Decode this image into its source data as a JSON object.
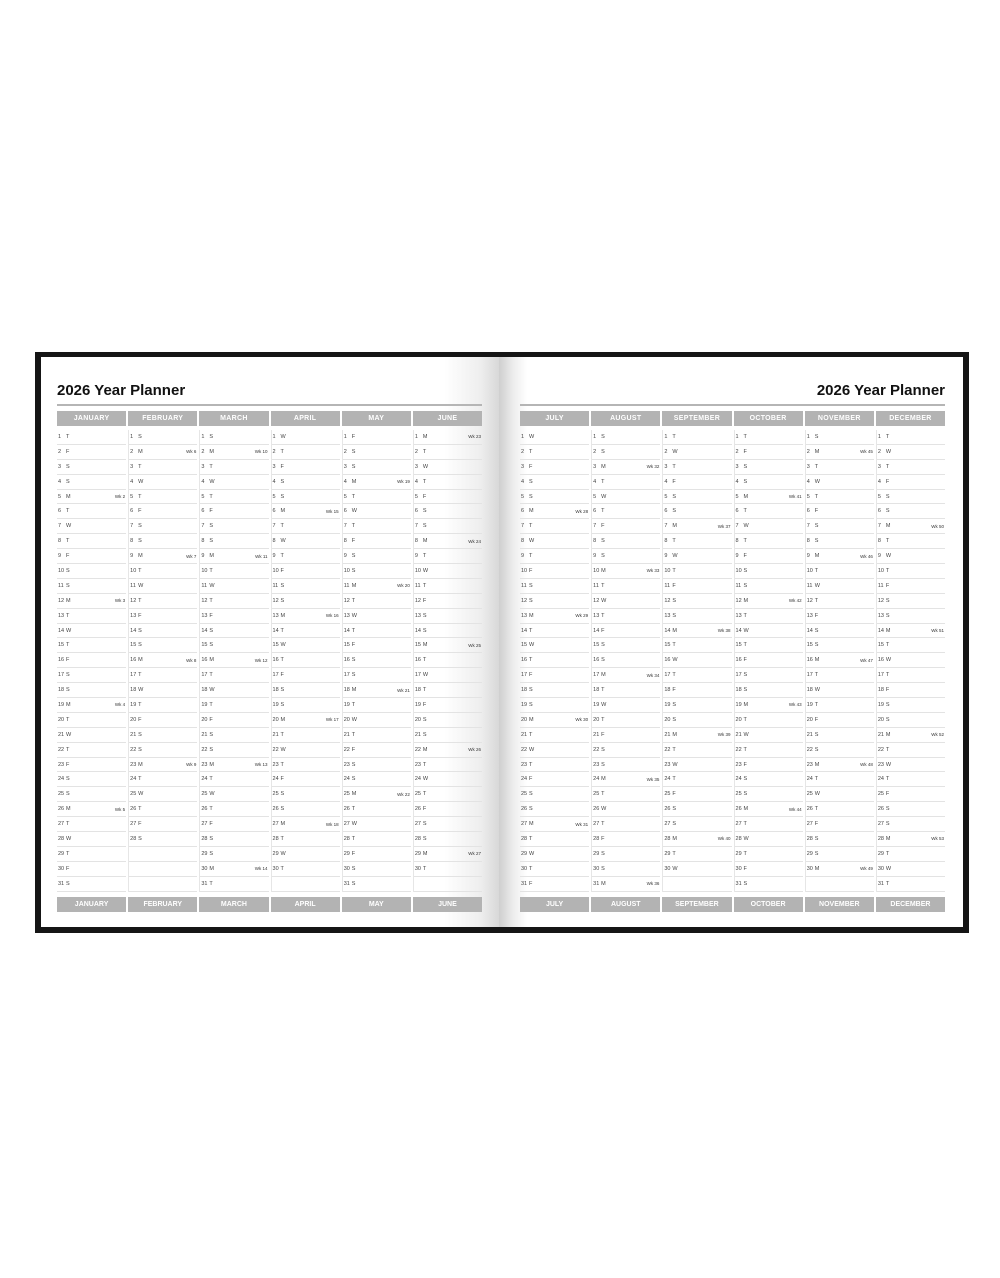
{
  "left_page": {
    "title": "2026 Year Planner",
    "months": [
      {
        "name": "JANUARY",
        "weekdays": "TFSSMTWTFSSMTWTFSSMTWTFSSMTWTFS",
        "weeks": {
          "5": "Wk 2",
          "12": "Wk 3",
          "19": "Wk 4",
          "26": "Wk 5"
        }
      },
      {
        "name": "FEBRUARY",
        "weekdays": "SMTWTFSSMTWTFSSMTWTFSSMTWTFS",
        "weeks": {
          "2": "Wk 6",
          "9": "Wk 7",
          "16": "Wk 8",
          "23": "Wk 9"
        }
      },
      {
        "name": "MARCH",
        "weekdays": "SMTWTFSSMTWTFSSMTWTFSSMTWTFSSMT",
        "weeks": {
          "2": "Wk 10",
          "9": "Wk 11",
          "16": "Wk 12",
          "23": "Wk 13",
          "30": "Wk 14"
        }
      },
      {
        "name": "APRIL",
        "weekdays": "WTFSSMTWTFSSMTWTFSSMTWTFSSMTWT",
        "weeks": {
          "6": "Wk 15",
          "13": "Wk 16",
          "20": "Wk 17",
          "27": "Wk 18"
        }
      },
      {
        "name": "MAY",
        "weekdays": "FSSMTWTFSSMTWTFSSMTWTFSSMTWTFSS",
        "weeks": {
          "4": "Wk 19",
          "11": "Wk 20",
          "18": "Wk 21",
          "25": "Wk 22"
        }
      },
      {
        "name": "JUNE",
        "weekdays": "MTWTFSSMTWTFSSMTWTFSSMTWTFSSMT",
        "weeks": {
          "1": "Wk 23",
          "8": "Wk 24",
          "15": "Wk 25",
          "22": "Wk 26",
          "29": "Wk 27"
        }
      }
    ]
  },
  "right_page": {
    "title": "2026 Year Planner",
    "months": [
      {
        "name": "JULY",
        "weekdays": "WTFSSMTWTFSSMTWTFSSMTWTFSSMTWTF",
        "weeks": {
          "6": "Wk 28",
          "13": "Wk 29",
          "20": "Wk 30",
          "27": "Wk 31"
        }
      },
      {
        "name": "AUGUST",
        "weekdays": "SSMTWTFSSMTWTFSSMTWTFSSMTWTFSSM",
        "weeks": {
          "3": "Wk 32",
          "10": "Wk 33",
          "17": "Wk 34",
          "24": "Wk 35",
          "31": "Wk 36"
        }
      },
      {
        "name": "SEPTEMBER",
        "weekdays": "TWTFSSMTWTFSSMTWTFSSMTWTFSSMTW",
        "weeks": {
          "7": "Wk 37",
          "14": "Wk 38",
          "21": "Wk 39",
          "28": "Wk 40"
        }
      },
      {
        "name": "OCTOBER",
        "weekdays": "TFSSMTWTFSSMTWTFSSMTWTFSSMTWTFS",
        "weeks": {
          "5": "Wk 41",
          "12": "Wk 42",
          "19": "Wk 43",
          "26": "Wk 44"
        }
      },
      {
        "name": "NOVEMBER",
        "weekdays": "SMTWTFSSMTWTFSSMTWTFSSMTWTFSSM",
        "weeks": {
          "2": "Wk 45",
          "9": "Wk 46",
          "16": "Wk 47",
          "23": "Wk 48",
          "30": "Wk 49"
        }
      },
      {
        "name": "DECEMBER",
        "weekdays": "TWTFSSMTWTFSSMTWTFSSMTWTFSSMTWT",
        "weeks": {
          "7": "Wk 50",
          "14": "Wk 51",
          "21": "Wk 52",
          "28": "Wk 53"
        }
      }
    ]
  }
}
